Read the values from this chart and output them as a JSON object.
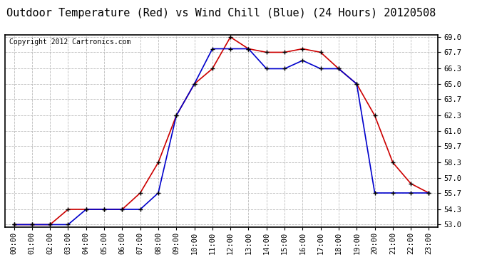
{
  "title": "Outdoor Temperature (Red) vs Wind Chill (Blue) (24 Hours) 20120508",
  "copyright": "Copyright 2012 Cartronics.com",
  "x_labels": [
    "00:00",
    "01:00",
    "02:00",
    "03:00",
    "04:00",
    "05:00",
    "06:00",
    "07:00",
    "08:00",
    "09:00",
    "10:00",
    "11:00",
    "12:00",
    "13:00",
    "14:00",
    "15:00",
    "16:00",
    "17:00",
    "18:00",
    "19:00",
    "20:00",
    "21:00",
    "22:00",
    "23:00"
  ],
  "red_temp": [
    53.0,
    53.0,
    53.0,
    54.3,
    54.3,
    54.3,
    54.3,
    55.7,
    58.3,
    62.3,
    65.0,
    66.3,
    69.0,
    68.0,
    67.7,
    67.7,
    68.0,
    67.7,
    66.3,
    65.0,
    62.3,
    58.3,
    56.5,
    55.7
  ],
  "blue_wc": [
    53.0,
    53.0,
    53.0,
    53.0,
    54.3,
    54.3,
    54.3,
    54.3,
    55.7,
    62.3,
    65.0,
    68.0,
    68.0,
    68.0,
    66.3,
    66.3,
    67.0,
    66.3,
    66.3,
    65.0,
    55.7,
    55.7,
    55.7,
    55.7
  ],
  "ylim_min": 53.0,
  "ylim_max": 69.0,
  "yticks": [
    53.0,
    54.3,
    55.7,
    57.0,
    58.3,
    59.7,
    61.0,
    62.3,
    63.7,
    65.0,
    66.3,
    67.7,
    69.0
  ],
  "red_color": "#cc0000",
  "blue_color": "#0000cc",
  "bg_color": "#ffffff",
  "grid_color": "#bbbbbb",
  "title_fontsize": 11,
  "tick_fontsize": 7.5,
  "copyright_fontsize": 7
}
